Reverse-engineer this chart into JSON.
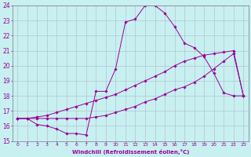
{
  "xlabel": "Windchill (Refroidissement éolien,°C)",
  "bg_color": "#c8f0f0",
  "line_color": "#990099",
  "grid_color": "#aabbcc",
  "xlim": [
    -0.5,
    23.5
  ],
  "ylim": [
    15,
    24
  ],
  "yticks": [
    15,
    16,
    17,
    18,
    19,
    20,
    21,
    22,
    23,
    24
  ],
  "xticks": [
    0,
    1,
    2,
    3,
    4,
    5,
    6,
    7,
    8,
    9,
    10,
    11,
    12,
    13,
    14,
    15,
    16,
    17,
    18,
    19,
    20,
    21,
    22,
    23
  ],
  "line1_x": [
    0,
    1,
    2,
    3,
    4,
    5,
    6,
    7,
    8,
    9,
    10,
    11,
    12,
    13,
    14,
    15,
    16,
    17,
    18,
    19,
    20,
    21,
    22,
    23
  ],
  "line1_y": [
    16.5,
    16.5,
    16.1,
    16.0,
    15.8,
    15.5,
    15.5,
    15.4,
    18.3,
    18.3,
    19.8,
    22.9,
    23.1,
    24.0,
    24.0,
    23.5,
    22.6,
    21.5,
    21.2,
    20.6,
    19.5,
    18.2,
    18.0,
    18.0
  ],
  "line2_x": [
    0,
    1,
    2,
    3,
    4,
    5,
    6,
    7,
    8,
    9,
    10,
    11,
    12,
    13,
    14,
    15,
    16,
    17,
    18,
    19,
    20,
    21,
    22,
    23
  ],
  "line2_y": [
    16.5,
    16.5,
    16.5,
    16.5,
    16.5,
    16.5,
    16.5,
    16.5,
    16.6,
    16.7,
    16.9,
    17.1,
    17.3,
    17.6,
    17.8,
    18.1,
    18.4,
    18.6,
    18.9,
    19.3,
    19.8,
    20.3,
    20.8,
    18.0
  ],
  "line3_x": [
    0,
    1,
    2,
    3,
    4,
    5,
    6,
    7,
    8,
    9,
    10,
    11,
    12,
    13,
    14,
    15,
    16,
    17,
    18,
    19,
    20,
    21,
    22,
    23
  ],
  "line3_y": [
    16.5,
    16.5,
    16.6,
    16.7,
    16.9,
    17.1,
    17.3,
    17.5,
    17.7,
    17.9,
    18.1,
    18.4,
    18.7,
    19.0,
    19.3,
    19.6,
    20.0,
    20.3,
    20.5,
    20.7,
    20.8,
    20.9,
    21.0,
    18.0
  ]
}
